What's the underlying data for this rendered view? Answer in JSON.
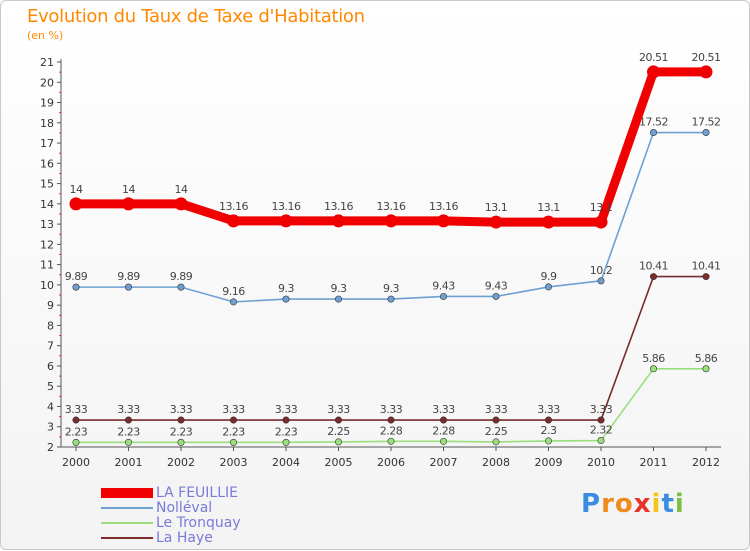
{
  "header": {
    "title": "Evolution du Taux de Taxe d'Habitation",
    "subtitle": "(en %)"
  },
  "logo": {
    "text": "Proxiti",
    "letters": [
      "P",
      "r",
      "o",
      "x",
      "i",
      "t",
      "i"
    ],
    "colors": [
      "#3a8de0",
      "#f08a1c",
      "#f08a1c",
      "#e8332a",
      "#f7c21b",
      "#3a8de0",
      "#7bc043"
    ]
  },
  "chart_data": {
    "type": "line",
    "title": "Evolution du Taux de Taxe d'Habitation",
    "ylabel": "(en %)",
    "xlabel": "",
    "x": [
      "2000",
      "2001",
      "2002",
      "2003",
      "2004",
      "2005",
      "2006",
      "2007",
      "2008",
      "2009",
      "2010",
      "2011",
      "2012"
    ],
    "ylim": [
      2,
      21
    ],
    "yticks": [
      2,
      3,
      4,
      5,
      6,
      7,
      8,
      9,
      10,
      11,
      12,
      13,
      14,
      15,
      16,
      17,
      18,
      19,
      20,
      21
    ],
    "grid": false,
    "legend_position": "bottom-left",
    "series": [
      {
        "name": "La Haye",
        "color": "#7a2c2c",
        "values": [
          3.33,
          3.33,
          3.33,
          3.33,
          3.33,
          3.33,
          3.33,
          3.33,
          3.33,
          3.33,
          3.33,
          10.41,
          10.41
        ],
        "labels": [
          "3.33",
          "3.33",
          "3.33",
          "3.33",
          "3.33",
          "3.33",
          "3.33",
          "3.33",
          "3.33",
          "3.33",
          "3.33",
          "10.41",
          "10.41"
        ]
      },
      {
        "name": "Le Tronquay",
        "color": "#9bde7c",
        "values": [
          2.23,
          2.23,
          2.23,
          2.23,
          2.23,
          2.25,
          2.28,
          2.28,
          2.25,
          2.3,
          2.32,
          5.86,
          5.86
        ],
        "labels": [
          "2.23",
          "2.23",
          "2.23",
          "2.23",
          "2.23",
          "2.25",
          "2.28",
          "2.28",
          "2.25",
          "2.3",
          "2.32",
          "5.86",
          "5.86"
        ]
      },
      {
        "name": "Nolléval",
        "color": "#6fa0d2",
        "values": [
          9.89,
          9.89,
          9.89,
          9.16,
          9.3,
          9.3,
          9.3,
          9.43,
          9.43,
          9.9,
          10.2,
          17.52,
          17.52
        ],
        "labels": [
          "9.89",
          "9.89",
          "9.89",
          "9.16",
          "9.3",
          "9.3",
          "9.3",
          "9.43",
          "9.43",
          "9.9",
          "10.2",
          "17.52",
          "17.52"
        ]
      },
      {
        "name": "LA FEUILLIE",
        "color": "#f00000",
        "values": [
          14,
          14,
          14,
          13.16,
          13.16,
          13.16,
          13.16,
          13.16,
          13.1,
          13.1,
          13.1,
          20.51,
          20.51
        ],
        "labels": [
          "14",
          "14",
          "14",
          "13.16",
          "13.16",
          "13.16",
          "13.16",
          "13.16",
          "13.1",
          "13.1",
          "13.1",
          "20.51",
          "20.51"
        ]
      }
    ]
  },
  "legend": {
    "items": [
      {
        "label": "LA FEUILLIE",
        "color": "#f00000",
        "text_color": "#7a7ad8"
      },
      {
        "label": "Nolléval",
        "color": "#6fa0d2",
        "text_color": "#7a7ad8"
      },
      {
        "label": "Le Tronquay",
        "color": "#9bde7c",
        "text_color": "#7a7ad8"
      },
      {
        "label": "La Haye",
        "color": "#7a2c2c",
        "text_color": "#7a7ad8"
      }
    ]
  }
}
